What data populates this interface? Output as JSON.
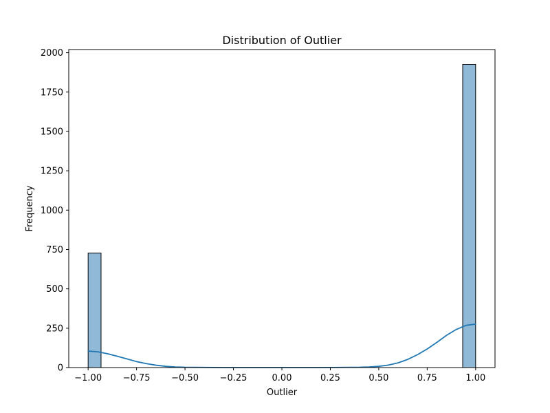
{
  "chart_data": {
    "type": "bar",
    "title": "Distribution of Outlier",
    "xlabel": "Outlier",
    "ylabel": "Frequency",
    "xlim": [
      -1.1,
      1.1
    ],
    "ylim": [
      0,
      2020
    ],
    "xticks": [
      -1.0,
      -0.75,
      -0.5,
      -0.25,
      0.0,
      0.25,
      0.5,
      0.75,
      1.0
    ],
    "xtick_labels": [
      "−1.00",
      "−0.75",
      "−0.50",
      "−0.25",
      "0.00",
      "0.25",
      "0.50",
      "0.75",
      "1.00"
    ],
    "yticks": [
      0,
      250,
      500,
      750,
      1000,
      1250,
      1500,
      1750,
      2000
    ],
    "ytick_labels": [
      "0",
      "250",
      "500",
      "750",
      "1000",
      "1250",
      "1500",
      "1750",
      "2000"
    ],
    "grid": false,
    "bars": [
      {
        "x_start": -1.0,
        "x_end": -0.9333,
        "value": 727
      },
      {
        "x_start": 0.9333,
        "x_end": 1.0,
        "value": 1926
      }
    ],
    "kde": {
      "x": [
        -1.0,
        -0.95,
        -0.9,
        -0.85,
        -0.8,
        -0.75,
        -0.7,
        -0.65,
        -0.6,
        -0.55,
        -0.5,
        -0.4,
        -0.3,
        -0.2,
        -0.1,
        0.0,
        0.1,
        0.2,
        0.3,
        0.4,
        0.45,
        0.5,
        0.55,
        0.6,
        0.65,
        0.7,
        0.75,
        0.8,
        0.85,
        0.9,
        0.95,
        1.0
      ],
      "y": [
        105,
        100,
        88,
        72,
        55,
        38,
        25,
        15,
        8,
        4,
        2,
        1,
        0,
        0,
        0,
        0,
        0,
        0,
        1,
        2,
        4,
        8,
        16,
        30,
        52,
        82,
        118,
        160,
        205,
        242,
        268,
        276
      ]
    },
    "colors": {
      "bar_fill": "#8fb9d6",
      "bar_edge": "#000000",
      "kde_line": "#1f77b4"
    }
  }
}
